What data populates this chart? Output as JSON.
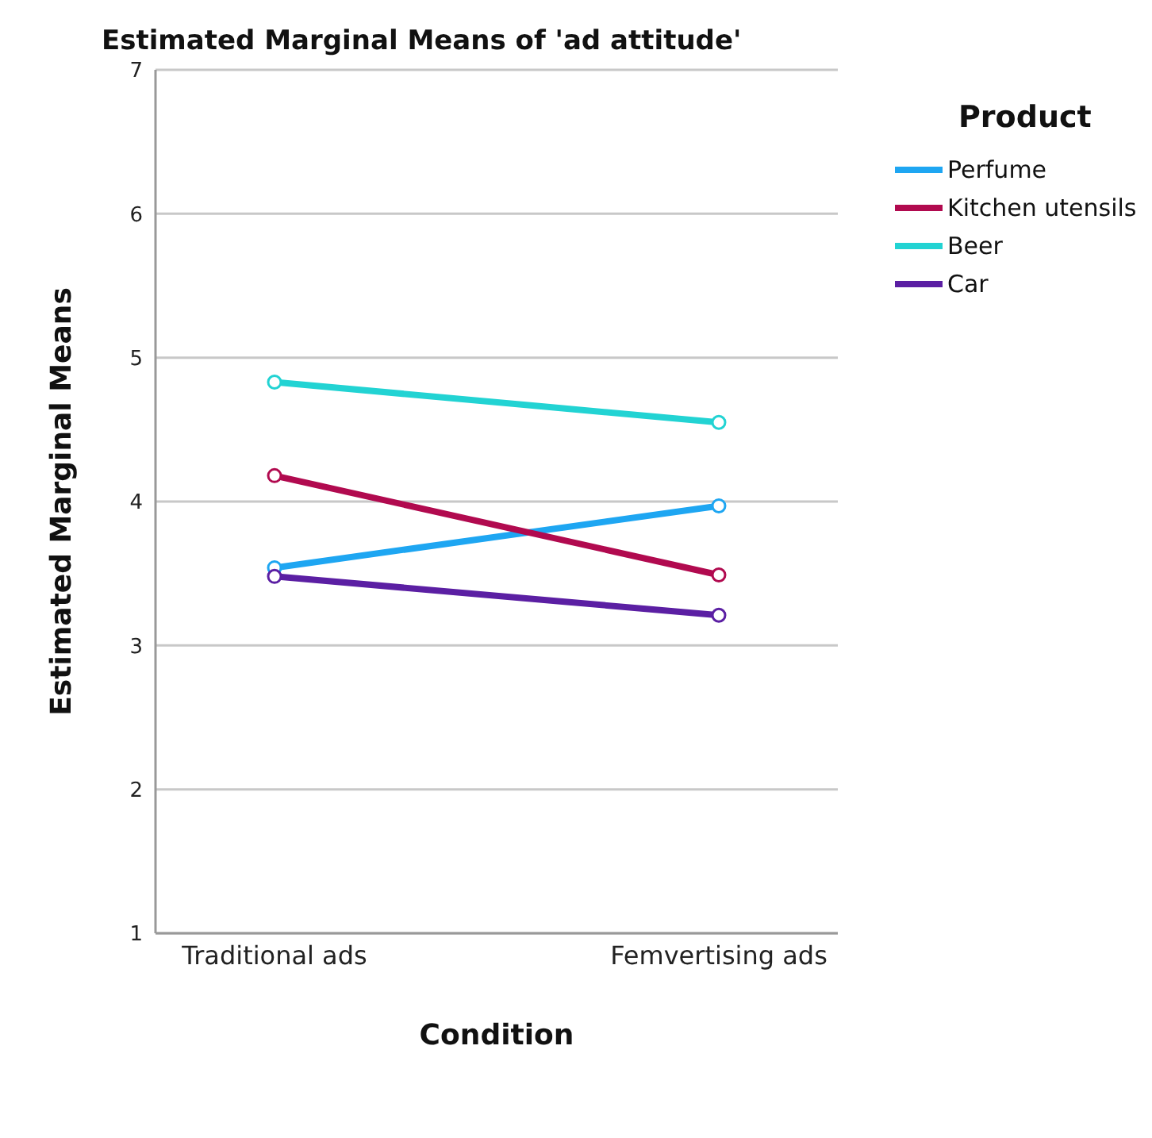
{
  "chart_data": {
    "type": "line",
    "title": "Estimated Marginal Means of 'ad attitude'",
    "xlabel": "Condition",
    "ylabel": "Estimated Marginal Means",
    "legend_title": "Product",
    "categories": [
      "Traditional ads",
      "Femvertising ads"
    ],
    "series": [
      {
        "name": "Perfume",
        "color": "#1ea6f2",
        "values": [
          3.54,
          3.97
        ]
      },
      {
        "name": "Kitchen utensils",
        "color": "#b10a4f",
        "values": [
          4.18,
          3.49
        ]
      },
      {
        "name": "Beer",
        "color": "#22d3d3",
        "values": [
          4.83,
          4.55
        ]
      },
      {
        "name": "Car",
        "color": "#5b1fa3",
        "values": [
          3.48,
          3.21
        ]
      }
    ],
    "ylim": [
      1,
      7
    ],
    "yticks": [
      1,
      2,
      3,
      4,
      5,
      6,
      7
    ],
    "grid": "y",
    "legend": "top right",
    "marker": "circle",
    "line_style": "solid"
  }
}
